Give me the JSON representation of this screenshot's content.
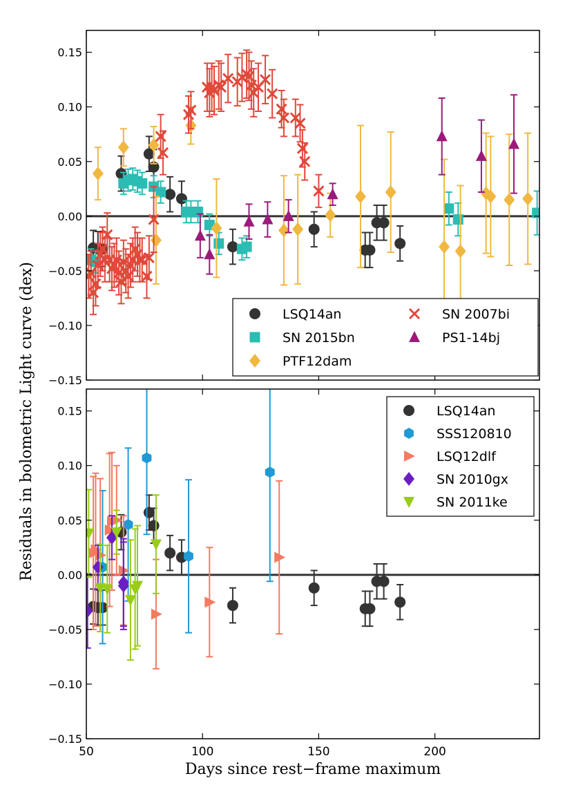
{
  "figure": {
    "ylabel": "Residuals in bolometric Light curve (dex)",
    "xlabel": "Days since rest−frame maximum",
    "x_ticks": [
      "50",
      "100",
      "150",
      "200"
    ],
    "y_ticks": [
      "0.15",
      "0.10",
      "0.05",
      "0.00",
      "−0.05",
      "−0.10",
      "−0.15"
    ],
    "x_range": [
      50,
      245
    ],
    "y_range": [
      -0.15,
      0.17
    ]
  },
  "chart_data": [
    {
      "type": "scatter",
      "panel": "top",
      "legend_placement": "lower-right",
      "series": [
        {
          "name": "LSQ14an",
          "marker": "circle",
          "color": "#333333",
          "x": [
            53,
            55,
            57,
            65,
            77,
            79,
            86,
            91,
            113,
            148,
            170,
            172,
            175,
            178,
            185
          ],
          "y": [
            -0.029,
            -0.03,
            -0.03,
            0.039,
            0.057,
            0.045,
            0.02,
            0.016,
            -0.028,
            -0.012,
            -0.031,
            -0.031,
            -0.006,
            -0.006,
            -0.025
          ],
          "err": [
            0.016,
            0.016,
            0.016,
            0.016,
            0.016,
            0.016,
            0.016,
            0.016,
            0.016,
            0.016,
            0.016,
            0.016,
            0.016,
            0.016,
            0.016
          ]
        },
        {
          "name": "SN 2015bn",
          "marker": "square",
          "color": "#2bbcb3",
          "x": [
            52,
            54,
            66,
            68,
            70,
            72,
            74,
            79,
            82,
            93,
            95,
            98,
            103,
            107,
            117,
            119,
            206,
            210,
            244
          ],
          "y": [
            -0.04,
            -0.042,
            0.03,
            0.033,
            0.034,
            0.032,
            0.03,
            0.027,
            0.022,
            0.004,
            0.004,
            0.004,
            -0.008,
            -0.025,
            -0.03,
            -0.028,
            0.007,
            -0.003,
            0.003
          ],
          "err": [
            0.01,
            0.01,
            0.01,
            0.01,
            0.01,
            0.01,
            0.01,
            0.01,
            0.01,
            0.01,
            0.01,
            0.01,
            0.01,
            0.01,
            0.01,
            0.01,
            0.015,
            0.015,
            0.02
          ]
        },
        {
          "name": "PTF12dam",
          "marker": "diamond",
          "color": "#f0b841",
          "x": [
            55,
            66,
            79,
            80,
            95,
            106,
            135,
            141,
            155,
            168,
            181,
            204,
            211,
            222,
            224,
            232,
            240
          ],
          "y": [
            0.039,
            0.063,
            0.065,
            -0.022,
            0.083,
            -0.011,
            -0.013,
            -0.012,
            0.001,
            0.018,
            0.022,
            -0.028,
            -0.032,
            0.021,
            0.018,
            0.015,
            0.016
          ],
          "err": [
            0.024,
            0.017,
            0.017,
            0.04,
            0.017,
            0.045,
            0.05,
            0.05,
            0.02,
            0.065,
            0.055,
            0.08,
            0.06,
            0.055,
            0.055,
            0.06,
            0.06
          ]
        },
        {
          "name": "SN 2007bi",
          "marker": "x",
          "color": "#e0483a",
          "x": [
            51,
            52,
            53,
            54,
            55,
            56,
            57,
            58,
            59,
            60,
            61,
            62,
            63,
            64,
            65,
            66,
            67,
            68,
            69,
            70,
            71,
            72,
            73,
            74,
            76,
            77,
            79,
            82,
            83,
            94,
            95,
            102,
            103,
            104,
            105,
            107,
            108,
            111,
            115,
            117,
            119,
            120,
            121,
            122,
            124,
            127,
            130,
            134,
            135,
            140,
            142,
            143,
            144,
            150
          ],
          "y": [
            -0.055,
            -0.052,
            -0.07,
            -0.062,
            -0.045,
            -0.035,
            -0.03,
            -0.04,
            -0.017,
            -0.04,
            -0.048,
            -0.045,
            -0.04,
            -0.052,
            -0.06,
            -0.042,
            -0.05,
            -0.055,
            -0.045,
            -0.04,
            -0.03,
            -0.035,
            -0.04,
            -0.04,
            -0.055,
            -0.038,
            -0.003,
            0.073,
            0.058,
            0.093,
            0.097,
            0.118,
            0.113,
            0.118,
            0.115,
            0.12,
            0.118,
            0.126,
            0.123,
            0.127,
            0.13,
            0.128,
            0.12,
            0.113,
            0.118,
            0.125,
            0.112,
            0.098,
            0.09,
            0.09,
            0.085,
            0.062,
            0.05,
            0.023
          ],
          "err": [
            0.02,
            0.02,
            0.02,
            0.02,
            0.02,
            0.02,
            0.02,
            0.02,
            0.02,
            0.02,
            0.02,
            0.02,
            0.02,
            0.02,
            0.02,
            0.02,
            0.02,
            0.02,
            0.02,
            0.02,
            0.02,
            0.02,
            0.02,
            0.02,
            0.02,
            0.02,
            0.03,
            0.02,
            0.02,
            0.017,
            0.017,
            0.022,
            0.022,
            0.022,
            0.022,
            0.022,
            0.022,
            0.022,
            0.022,
            0.022,
            0.022,
            0.022,
            0.022,
            0.022,
            0.022,
            0.022,
            0.022,
            0.017,
            0.017,
            0.017,
            0.017,
            0.017,
            0.017,
            0.015
          ]
        },
        {
          "name": "PS1-14bj",
          "marker": "triangle-up",
          "color": "#9c1a7c",
          "x": [
            99,
            103,
            120,
            128,
            137,
            156,
            203,
            220,
            234
          ],
          "y": [
            -0.018,
            -0.035,
            -0.005,
            -0.003,
            0.0,
            0.02,
            0.073,
            0.055,
            0.066
          ],
          "err": [
            0.02,
            0.018,
            0.016,
            0.016,
            0.015,
            0.01,
            0.035,
            0.033,
            0.045
          ]
        }
      ]
    },
    {
      "type": "scatter",
      "panel": "bottom",
      "legend_placement": "upper-right",
      "series": [
        {
          "name": "LSQ14an",
          "marker": "circle",
          "color": "#333333",
          "x": [
            53,
            55,
            57,
            65,
            77,
            79,
            86,
            91,
            113,
            148,
            170,
            172,
            175,
            178,
            185
          ],
          "y": [
            -0.029,
            -0.03,
            -0.03,
            0.039,
            0.057,
            0.045,
            0.02,
            0.016,
            -0.028,
            -0.012,
            -0.031,
            -0.031,
            -0.006,
            -0.006,
            -0.025
          ],
          "err": [
            0.016,
            0.016,
            0.016,
            0.016,
            0.016,
            0.016,
            0.016,
            0.016,
            0.016,
            0.016,
            0.016,
            0.016,
            0.016,
            0.016,
            0.016
          ]
        },
        {
          "name": "SSS120810",
          "marker": "hexagon",
          "color": "#1f9ad4",
          "x": [
            57,
            68,
            76,
            94,
            129
          ],
          "y": [
            0.007,
            0.046,
            0.107,
            0.017,
            0.094
          ],
          "err": [
            0.07,
            0.07,
            0.07,
            0.07,
            0.1
          ]
        },
        {
          "name": "LSQ12dlf",
          "marker": "triangle-right",
          "color": "#f47a60",
          "x": [
            53,
            54,
            56,
            60,
            61,
            63,
            66,
            80,
            103,
            133
          ],
          "y": [
            0.02,
            0.023,
            0.018,
            0.041,
            0.049,
            0.05,
            0.004,
            -0.036,
            -0.025,
            0.016
          ],
          "err": [
            0.07,
            0.07,
            0.07,
            0.07,
            0.063,
            0.05,
            0.05,
            0.05,
            0.05,
            0.07
          ]
        },
        {
          "name": "SN 2010gx",
          "marker": "diamond",
          "color": "#6a1ec4",
          "x": [
            50.5,
            55,
            61,
            66,
            66
          ],
          "y": [
            -0.033,
            0.007,
            0.034,
            -0.007,
            -0.01
          ],
          "err": [
            0.034,
            0.02,
            0.02,
            0.04,
            0.04
          ]
        },
        {
          "name": "SN 2011ke",
          "marker": "triangle-down",
          "color": "#99cc1a",
          "x": [
            51,
            56,
            59,
            63,
            69,
            71,
            72,
            80
          ],
          "y": [
            0.038,
            -0.012,
            -0.013,
            0.039,
            -0.023,
            -0.013,
            -0.01,
            0.028
          ],
          "err": [
            0.04,
            0.04,
            0.04,
            0.02,
            0.055,
            0.055,
            0.055,
            0.045
          ]
        }
      ]
    }
  ]
}
